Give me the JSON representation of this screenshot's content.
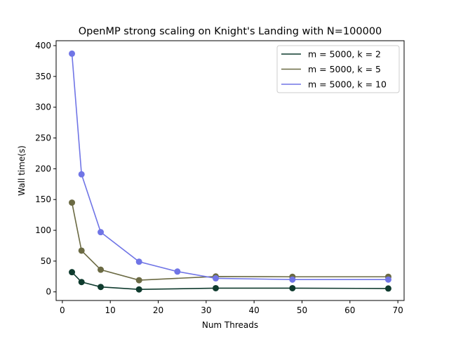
{
  "chart_data": {
    "type": "line",
    "title": "OpenMP strong scaling on Knight's Landing with N=100000",
    "xlabel": "Num Threads",
    "ylabel": "Wall time(s)",
    "xlim": [
      -1.3,
      71.3
    ],
    "ylim": [
      -14,
      408
    ],
    "xticks": [
      0,
      10,
      20,
      30,
      40,
      50,
      60,
      70
    ],
    "yticks": [
      0,
      50,
      100,
      150,
      200,
      250,
      300,
      350,
      400
    ],
    "grid": false,
    "legend_position": "top-right",
    "series": [
      {
        "name": "m = 5000, k = 2",
        "color": "#0f3b2e",
        "x": [
          2,
          4,
          8,
          16,
          32,
          48,
          68
        ],
        "y": [
          32,
          16,
          8,
          4,
          6,
          6,
          5.5
        ]
      },
      {
        "name": "m = 5000, k = 5",
        "color": "#6b6a43",
        "x": [
          2,
          4,
          8,
          16,
          32,
          48,
          68
        ],
        "y": [
          145,
          67,
          36,
          19,
          25,
          24.5,
          24.5
        ]
      },
      {
        "name": "m = 5000, k = 10",
        "color": "#7075e6",
        "x": [
          2,
          4,
          8,
          16,
          24,
          32,
          48,
          68
        ],
        "y": [
          387,
          191,
          97,
          49,
          33,
          22,
          20,
          20
        ]
      }
    ]
  }
}
